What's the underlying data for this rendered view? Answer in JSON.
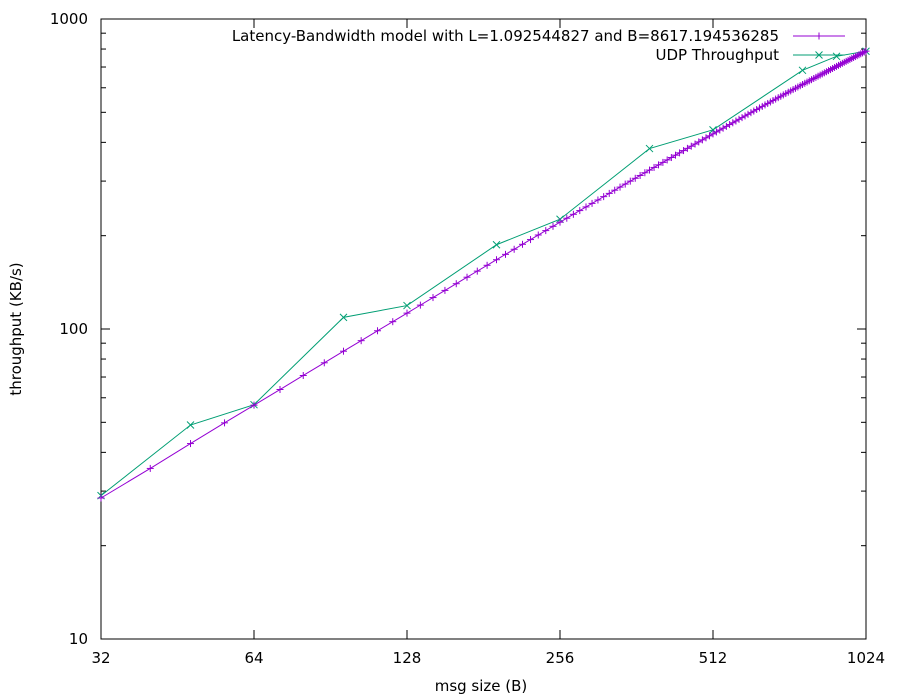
{
  "chart_data": {
    "type": "line",
    "title": "",
    "xlabel": "msg size (B)",
    "ylabel": "throughput (KB/s)",
    "x_scale": "log2",
    "y_scale": "log10",
    "xlim": [
      32,
      1024
    ],
    "ylim": [
      10,
      1000
    ],
    "x_ticks": [
      32,
      64,
      128,
      256,
      512,
      1024
    ],
    "x_tick_labels": [
      "32",
      "64",
      "128",
      "256",
      "512",
      "1024"
    ],
    "y_ticks": [
      10,
      100,
      1000
    ],
    "y_tick_labels": [
      "10",
      "100",
      "1000"
    ],
    "grid": false,
    "legend_position": "top-right",
    "series": [
      {
        "name": "Latency-Bandwidth model with L=1.092544827 and B=8617.194536285",
        "color": "#9400d3",
        "marker": "plus",
        "model": {
          "L": 1.092544827,
          "B": 8617.194536285
        },
        "x": [
          32,
          40,
          48,
          56,
          64,
          72,
          80,
          88,
          96,
          104,
          112,
          120,
          128,
          136,
          144,
          152,
          160,
          168,
          176,
          184,
          192,
          200,
          208,
          216,
          224,
          232,
          240,
          248,
          256,
          264,
          272,
          280,
          288,
          296,
          304,
          312,
          320,
          328,
          336,
          344,
          352,
          360,
          368,
          376,
          384,
          392,
          400,
          408,
          416,
          424,
          432,
          440,
          448,
          456,
          464,
          472,
          480,
          488,
          496,
          504,
          512,
          520,
          528,
          536,
          544,
          552,
          560,
          568,
          576,
          584,
          592,
          600,
          608,
          616,
          624,
          632,
          640,
          648,
          656,
          664,
          672,
          680,
          688,
          696,
          704,
          712,
          720,
          728,
          736,
          744,
          752,
          760,
          768,
          776,
          784,
          792,
          800,
          808,
          816,
          824,
          832,
          840,
          848,
          856,
          864,
          872,
          880,
          888,
          896,
          904,
          912,
          920,
          928,
          936,
          944,
          952,
          960,
          968,
          976,
          984,
          992,
          1000,
          1008,
          1016,
          1024
        ],
        "y": [
          28.5,
          35.5,
          42.7,
          49.8,
          56.8,
          63.8,
          70.8,
          77.8,
          84.8,
          91.7,
          98.7,
          105.6,
          112.5,
          119.4,
          126.3,
          133.2,
          140.0,
          146.9,
          153.7,
          160.5,
          167.3,
          174.1,
          180.8,
          187.6,
          194.3,
          201.0,
          207.7,
          214.4,
          221.1,
          227.7,
          234.4,
          241.0,
          247.6,
          254.2,
          260.7,
          267.3,
          273.8,
          280.4,
          286.9,
          293.4,
          299.9,
          306.3,
          312.8,
          319.2,
          325.6,
          332.0,
          338.4,
          344.7,
          351.1,
          357.4,
          363.7,
          370.0,
          376.3,
          382.6,
          388.8,
          395.1,
          401.3,
          407.5,
          413.7,
          419.9,
          426.0,
          432.2,
          438.3,
          444.4,
          450.5,
          456.6,
          462.6,
          468.7,
          474.7,
          480.7,
          486.7,
          492.7,
          498.7,
          504.6,
          510.6,
          516.5,
          522.4,
          528.3,
          534.1,
          540.0,
          545.8,
          551.7,
          557.5,
          563.3,
          569.0,
          574.8,
          580.6,
          586.3,
          592.0,
          597.7,
          603.4,
          609.1,
          614.7,
          620.4,
          626.0,
          631.6,
          637.2,
          642.8,
          648.3,
          653.9,
          659.4,
          664.9,
          670.4,
          675.9,
          681.4,
          686.9,
          692.3,
          697.8,
          703.2,
          708.6,
          714.0,
          719.4,
          724.7,
          730.1,
          735.4,
          740.7,
          746.0,
          751.3,
          756.6,
          761.8,
          767.1,
          772.3,
          777.5,
          782.7,
          787.9
        ]
      },
      {
        "name": "UDP Throughput",
        "color": "#009e73",
        "marker": "cross",
        "x": [
          32,
          48,
          64,
          96,
          128,
          192,
          256,
          384,
          512,
          768,
          896,
          1024
        ],
        "y": [
          29,
          49,
          57,
          109,
          119,
          187,
          226,
          382,
          439,
          683,
          758,
          787
        ]
      }
    ]
  }
}
